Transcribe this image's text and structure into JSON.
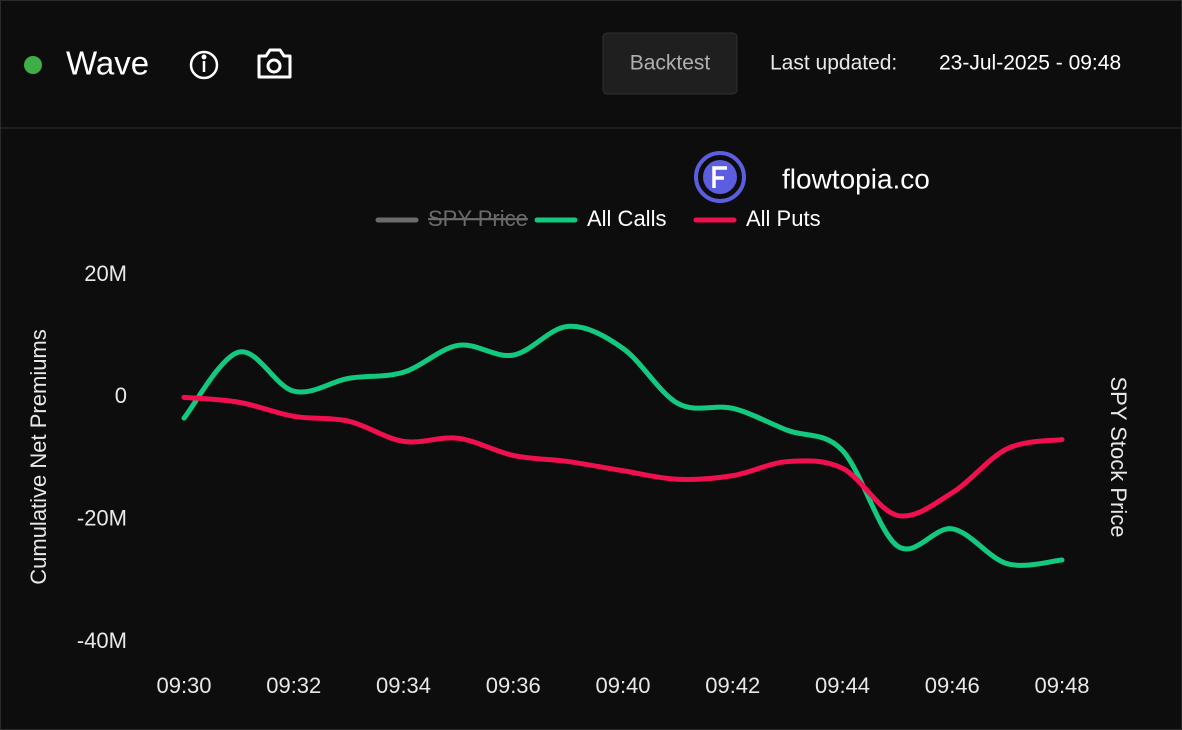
{
  "header": {
    "title": "Wave",
    "button": "Backtest",
    "updated_label": "Last updated:",
    "updated": "23-Jul-2025 - 09:48"
  },
  "brand": "flowtopia.co",
  "chart_data": {
    "type": "line",
    "y_label": "Cumulative Net Premiums",
    "y2_label": "SPY Stock Price",
    "categories": [
      "09:30",
      null,
      "09:32",
      null,
      "09:34",
      null,
      "09:36",
      null,
      "09:40",
      null,
      "09:42",
      null,
      "09:44",
      null,
      "09:46",
      null,
      "09:48"
    ],
    "ylim": [
      -40,
      20
    ],
    "yticks": [
      {
        "value": -40,
        "label": "-40M"
      },
      {
        "value": -20,
        "label": "-20M"
      },
      0,
      {
        "value": 20,
        "label": "20M"
      }
    ],
    "grid": false,
    "legend": "top",
    "series": [
      {
        "name": "SPY Price",
        "color": "#6b6b6b",
        "hidden": true,
        "values": [
          null,
          null,
          null,
          null,
          null,
          null,
          null,
          null,
          null,
          null,
          null,
          null,
          null,
          null,
          null,
          null,
          null
        ]
      },
      {
        "name": "All Calls",
        "color": "#12c97f",
        "values": [
          -3.4,
          7.4,
          1,
          3.1,
          4.1,
          8.5,
          6.9,
          11.6,
          8,
          -1,
          -1.8,
          -5.4,
          -8.7,
          -24.3,
          -21.5,
          -27.2,
          -26.6
        ]
      },
      {
        "name": "All Puts",
        "color": "#f0104f",
        "values": [
          0,
          -0.8,
          -3.1,
          -3.9,
          -7.2,
          -6.7,
          -9.5,
          -10.5,
          -12,
          -13.4,
          -12.8,
          -10.5,
          -11.6,
          -19.3,
          -15.6,
          -8.4,
          -6.9
        ]
      }
    ]
  }
}
